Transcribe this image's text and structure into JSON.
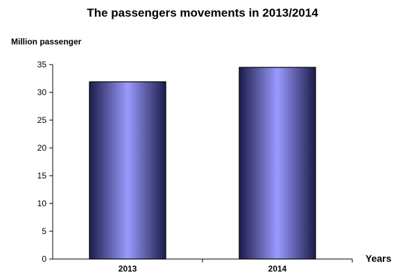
{
  "chart_data": {
    "type": "bar",
    "title": "The passengers movements in 2013/2014",
    "ylabel": "Million passenger",
    "xlabel": "Years",
    "categories": [
      "2013",
      "2014"
    ],
    "values": [
      31.9,
      34.5
    ],
    "ylim": [
      0,
      35
    ],
    "yticks": [
      0,
      5,
      10,
      15,
      20,
      25,
      30,
      35
    ],
    "grid": false,
    "legend": "none",
    "colors": {
      "bar_edge": "#8f8fff",
      "bar_center": "#9a9aff",
      "bar_dark": "#1c1c4a",
      "outline": "#000000"
    }
  }
}
